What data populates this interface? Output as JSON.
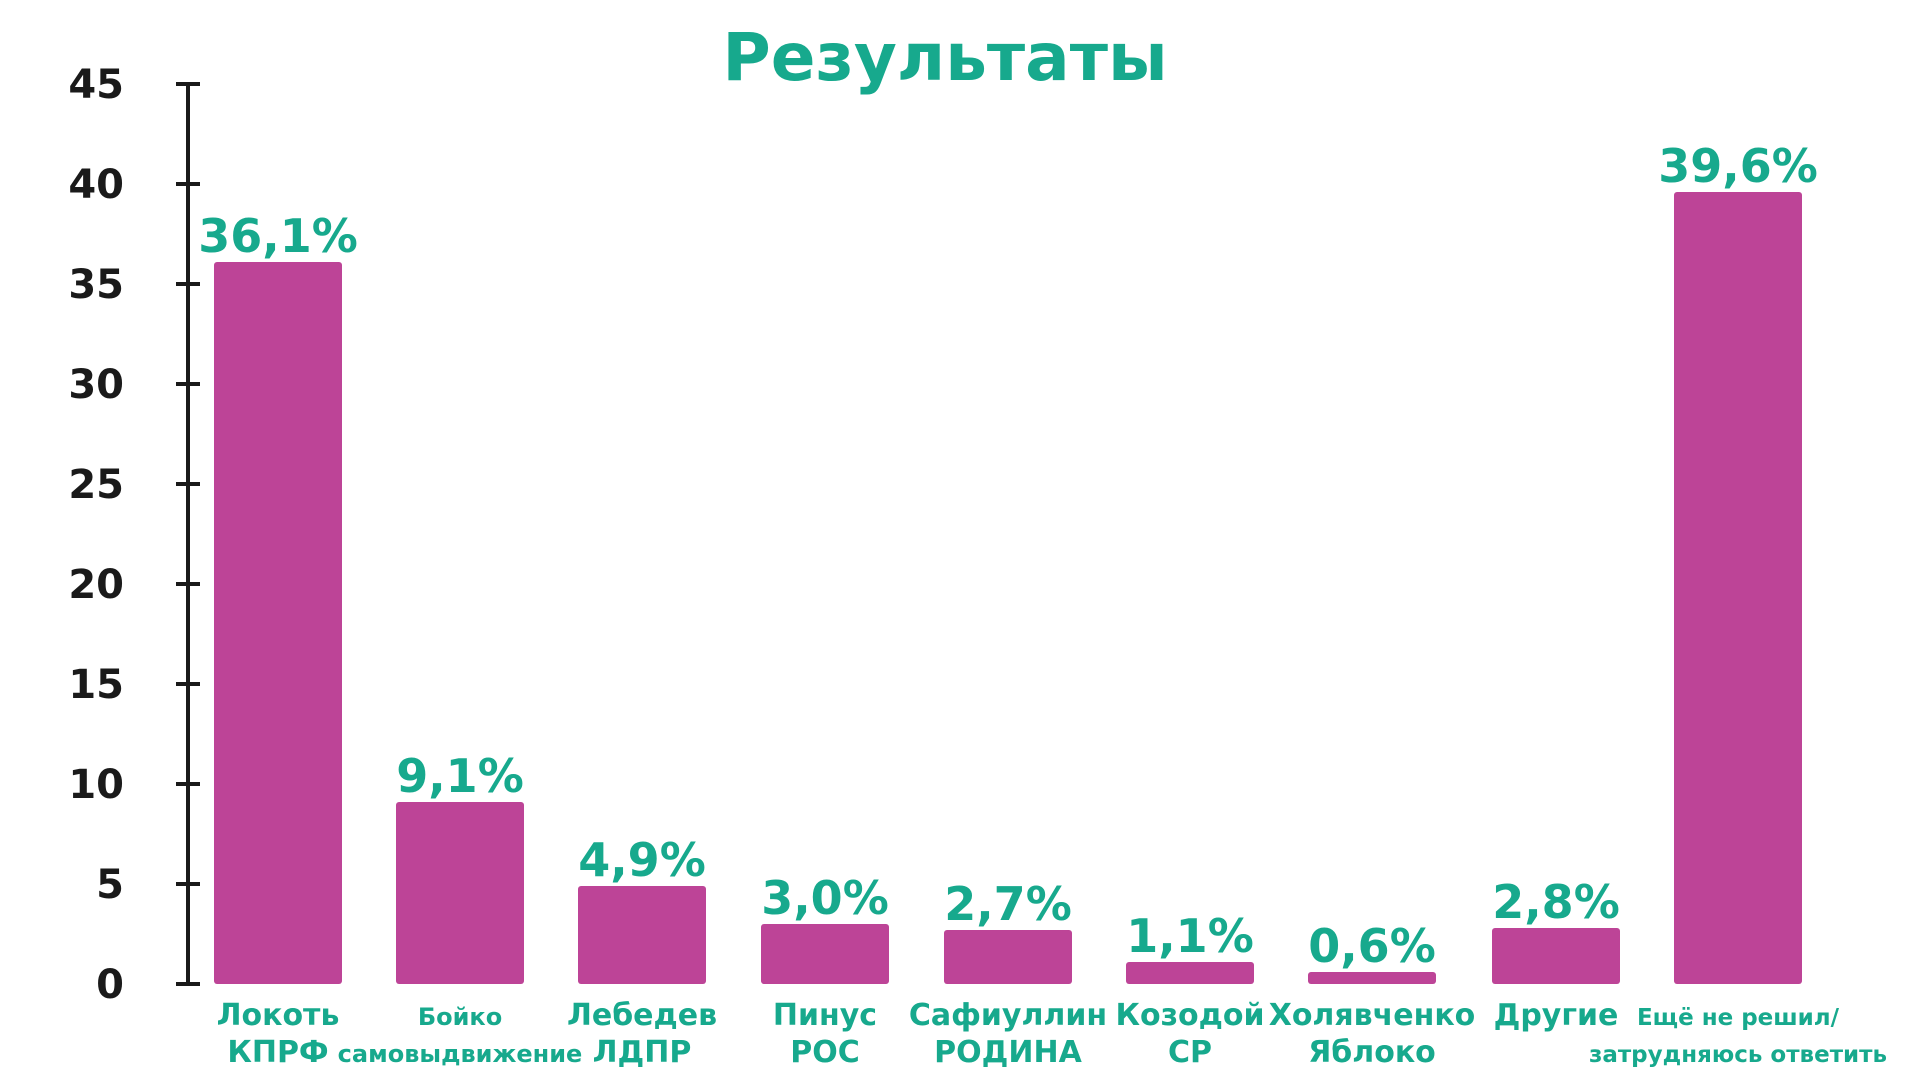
{
  "chart_data": {
    "type": "bar",
    "title": "Результаты",
    "categories": [
      [
        "Локоть",
        "КПРФ"
      ],
      [
        "Бойко",
        "самовыдвижение"
      ],
      [
        "Лебедев",
        "ЛДПР"
      ],
      [
        "Пинус",
        "РОС"
      ],
      [
        "Сафиуллин",
        "РОДИНА"
      ],
      [
        "Козодой",
        "СР"
      ],
      [
        "Холявченко",
        "Яблоко"
      ],
      [
        "Другие"
      ],
      [
        "Ещё не решил/",
        "затрудняюсь ответить"
      ]
    ],
    "values": [
      36.1,
      9.1,
      4.9,
      3.0,
      2.7,
      1.1,
      0.6,
      2.8,
      39.6
    ],
    "value_labels": [
      "36,1%",
      "9,1%",
      "4,9%",
      "3,0%",
      "2,7%",
      "1,1%",
      "0,6%",
      "2,8%",
      "39,6%"
    ],
    "xlabel": "",
    "ylabel": "",
    "ylim": [
      0,
      45
    ],
    "yticks": [
      0,
      5,
      10,
      15,
      20,
      25,
      30,
      35,
      40,
      45
    ],
    "grid": false,
    "legend": "none",
    "colors": {
      "bar": "#BD4497",
      "accent": "#17A98D",
      "axis": "#1a1a1a"
    }
  }
}
